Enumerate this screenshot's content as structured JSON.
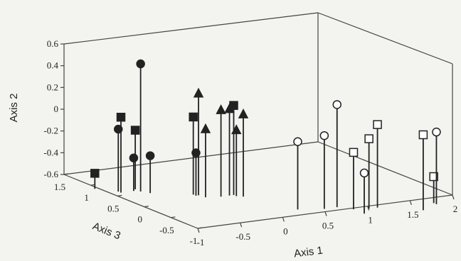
{
  "chart_data": {
    "type": "scatter",
    "projection": "3d",
    "xlabel": "Axis 1",
    "ylabel": "Axis 2",
    "zlabel": "Axis 3",
    "xlim": [
      -1,
      2
    ],
    "ylim": [
      -0.6,
      0.6
    ],
    "zlim": [
      -1,
      1.5
    ],
    "x_ticks": [
      "-1",
      "-0.5",
      "0",
      "0.5",
      "1",
      "1.5",
      "2"
    ],
    "y_ticks": [
      "-0.6",
      "-0.4",
      "-0.2",
      "0",
      "0.2",
      "0.4",
      "0.6"
    ],
    "z_ticks": [
      "-1",
      "-0.5",
      "0",
      "0.5",
      "1",
      "1.5"
    ],
    "grid": false,
    "marker_colors": {
      "stroke": "#222222",
      "filled": "#222222",
      "open": "#ffffff"
    },
    "series": [
      {
        "marker": "filled-circle",
        "points": [
          {
            "x": -0.35,
            "y": 0.43,
            "z": 1.1
          },
          {
            "x": -0.55,
            "y": -0.17,
            "z": 1.2
          },
          {
            "x": -0.4,
            "y": -0.44,
            "z": 1.15
          },
          {
            "x": -0.3,
            "y": -0.4,
            "z": 1.0
          },
          {
            "x": 0.05,
            "y": -0.35,
            "z": 0.7
          }
        ]
      },
      {
        "marker": "filled-square",
        "points": [
          {
            "x": -0.55,
            "y": -0.05,
            "z": 1.15
          },
          {
            "x": -0.35,
            "y": -0.2,
            "z": 1.2
          },
          {
            "x": -0.7,
            "y": -0.6,
            "z": 1.4
          },
          {
            "x": 0.05,
            "y": -0.03,
            "z": 0.75
          },
          {
            "x": 0.4,
            "y": 0.08,
            "z": 0.55
          }
        ]
      },
      {
        "marker": "filled-triangle",
        "points": [
          {
            "x": 0.08,
            "y": 0.19,
            "z": 0.7
          },
          {
            "x": 0.25,
            "y": 0.05,
            "z": 0.55
          },
          {
            "x": 0.1,
            "y": -0.12,
            "z": 0.6
          },
          {
            "x": 0.35,
            "y": 0.05,
            "z": 0.55
          },
          {
            "x": 0.4,
            "y": -0.14,
            "z": 0.5
          },
          {
            "x": 0.45,
            "y": 0.01,
            "z": 0.45
          }
        ]
      },
      {
        "marker": "open-circle",
        "points": [
          {
            "x": 0.65,
            "y": -0.12,
            "z": -0.25
          },
          {
            "x": 0.9,
            "y": -0.07,
            "z": -0.35
          },
          {
            "x": 1.05,
            "y": 0.2,
            "z": -0.35
          },
          {
            "x": 1.15,
            "y": -0.37,
            "z": -0.7
          },
          {
            "x": 2.0,
            "y": -0.08,
            "z": -0.7
          }
        ]
      },
      {
        "marker": "open-square",
        "points": [
          {
            "x": 1.15,
            "y": -0.22,
            "z": -0.5
          },
          {
            "x": 1.3,
            "y": -0.1,
            "z": -0.55
          },
          {
            "x": 1.4,
            "y": 0.02,
            "z": -0.55
          },
          {
            "x": 1.75,
            "y": -0.05,
            "z": -0.85
          },
          {
            "x": 2.0,
            "y": -0.5,
            "z": -0.65
          }
        ]
      }
    ]
  }
}
